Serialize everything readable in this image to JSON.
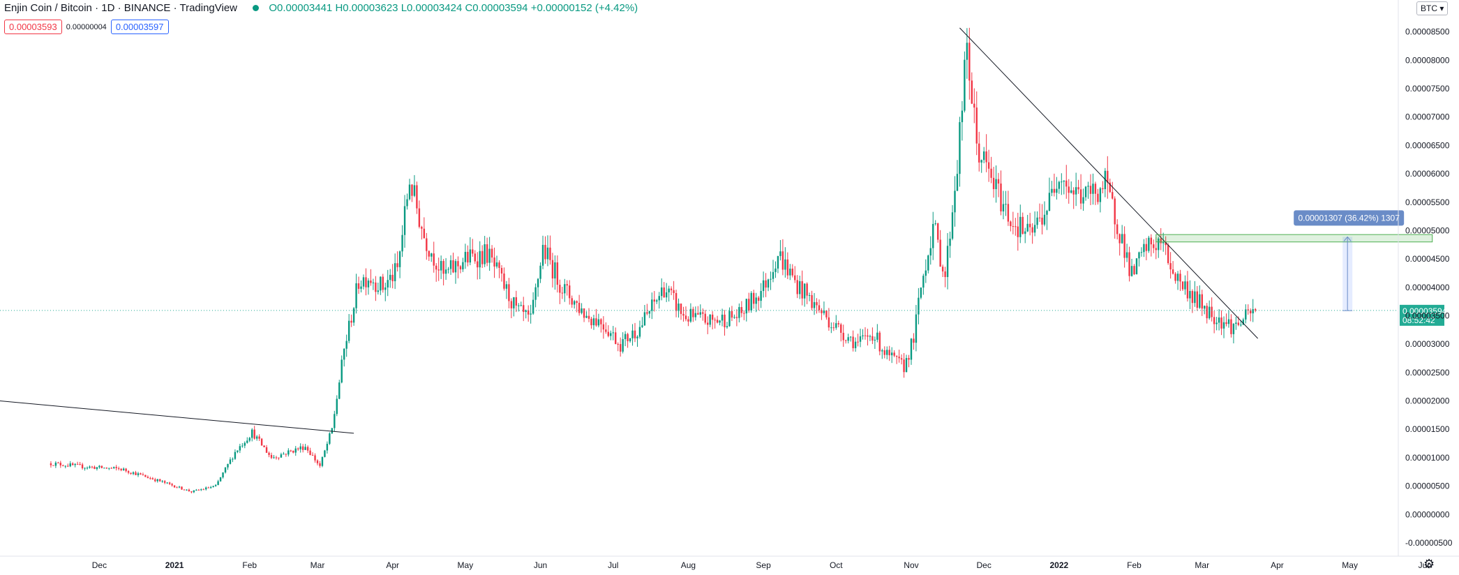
{
  "header": {
    "symbol": "Enjin Coin / Bitcoin · 1D · BINANCE · TradingView",
    "ohlc": "O0.00003441 H0.00003623 L0.00003424 C0.00003594 +0.00000152 (+4.42%)"
  },
  "quotes": {
    "bid": "0.00003593",
    "spread": "0.00000004",
    "ask": "0.00003597"
  },
  "currency_button": "BTC",
  "settings_icon": "gear-icon",
  "colors": {
    "up": "#089981",
    "down": "#f23645",
    "price_label": "#22ab94",
    "measure": "#6a8cc7"
  },
  "chart_data": {
    "type": "candlestick",
    "x_ticks": [
      "Dec",
      "2021",
      "Feb",
      "Mar",
      "Apr",
      "May",
      "Jun",
      "Jul",
      "Aug",
      "Sep",
      "Oct",
      "Nov",
      "Dec",
      "2022",
      "Feb",
      "Mar",
      "Apr",
      "May",
      "Jun"
    ],
    "y_ticks": [
      "0.00008500",
      "0.00008000",
      "0.00007500",
      "0.00007000",
      "0.00006500",
      "0.00006000",
      "0.00005500",
      "0.00005000",
      "0.00004500",
      "0.00004000",
      "0.00003500",
      "0.00003000",
      "0.00002500",
      "0.00002000",
      "0.00001500",
      "0.00001000",
      "0.00000500",
      "0.00000000",
      "-0.00000500"
    ],
    "ylim": [
      -5.5e-06,
      9e-05
    ],
    "last_price": {
      "value": "0.00003594",
      "countdown": "08:52:42"
    },
    "trendlines": [
      {
        "from": [
          "2020-10-21",
          2e-05
        ],
        "to": [
          "2021-03-16",
          1.43e-05
        ]
      },
      {
        "from": [
          "2021-11-21",
          8.57e-05
        ],
        "to": [
          "2022-03-24",
          3.1e-05
        ]
      }
    ],
    "measure": {
      "label": "0.00001307 (36.42%) 1307",
      "from": [
        "2022-04-30",
        3.59e-05
      ],
      "to": [
        "2022-04-30",
        4.89e-05
      ],
      "zone": {
        "from_date": "2022-02-10",
        "to_date": "2022-06-04",
        "low": 4.8e-05,
        "high": 4.93e-05
      }
    },
    "path_start": "2020-11-11",
    "path_end": "2022-03-23",
    "path": [
      [
        "2020-11-11",
        9e-06
      ],
      [
        "2020-11-25",
        8.4e-06
      ],
      [
        "2020-12-10",
        8e-06
      ],
      [
        "2020-12-25",
        6e-06
      ],
      [
        "2021-01-08",
        4e-06
      ],
      [
        "2021-01-18",
        5e-06
      ],
      [
        "2021-01-26",
        1.1e-05
      ],
      [
        "2021-02-02",
        1.45e-05
      ],
      [
        "2021-02-10",
        1e-05
      ],
      [
        "2021-02-17",
        1.1e-05
      ],
      [
        "2021-02-24",
        1.2e-05
      ],
      [
        "2021-03-02",
        8.5e-06
      ],
      [
        "2021-03-07",
        1.5e-05
      ],
      [
        "2021-03-12",
        2.9e-05
      ],
      [
        "2021-03-18",
        4.1e-05
      ],
      [
        "2021-03-22",
        4.2e-05
      ],
      [
        "2021-03-28",
        4e-05
      ],
      [
        "2021-04-03",
        4.3e-05
      ],
      [
        "2021-04-08",
        5.9e-05
      ],
      [
        "2021-04-14",
        4.9e-05
      ],
      [
        "2021-04-22",
        4.2e-05
      ],
      [
        "2021-05-01",
        4.5e-05
      ],
      [
        "2021-05-10",
        4.6e-05
      ],
      [
        "2021-05-16",
        4.1e-05
      ],
      [
        "2021-05-22",
        3.6e-05
      ],
      [
        "2021-05-28",
        3.4e-05
      ],
      [
        "2021-06-02",
        4.7e-05
      ],
      [
        "2021-06-10",
        4e-05
      ],
      [
        "2021-06-20",
        3.5e-05
      ],
      [
        "2021-06-26",
        3.4e-05
      ],
      [
        "2021-07-04",
        3e-05
      ],
      [
        "2021-07-12",
        3.3e-05
      ],
      [
        "2021-07-22",
        4e-05
      ],
      [
        "2021-07-30",
        3.5e-05
      ],
      [
        "2021-08-10",
        3.4e-05
      ],
      [
        "2021-08-22",
        3.5e-05
      ],
      [
        "2021-09-01",
        4e-05
      ],
      [
        "2021-09-07",
        4.6e-05
      ],
      [
        "2021-09-14",
        4.1e-05
      ],
      [
        "2021-09-22",
        3.7e-05
      ],
      [
        "2021-10-01",
        3.3e-05
      ],
      [
        "2021-10-10",
        3e-05
      ],
      [
        "2021-10-16",
        3.2e-05
      ],
      [
        "2021-10-22",
        2.8e-05
      ],
      [
        "2021-10-29",
        2.6e-05
      ],
      [
        "2021-11-02",
        3.1e-05
      ],
      [
        "2021-11-05",
        4e-05
      ],
      [
        "2021-11-10",
        5.1e-05
      ],
      [
        "2021-11-15",
        4.2e-05
      ],
      [
        "2021-11-20",
        6.2e-05
      ],
      [
        "2021-11-24",
        8.2e-05
      ],
      [
        "2021-11-28",
        6.5e-05
      ],
      [
        "2021-12-04",
        5.9e-05
      ],
      [
        "2021-12-12",
        5.2e-05
      ],
      [
        "2021-12-20",
        4.9e-05
      ],
      [
        "2021-12-28",
        5.5e-05
      ],
      [
        "2022-01-01",
        6.1e-05
      ],
      [
        "2022-01-06",
        5.7e-05
      ],
      [
        "2022-01-12",
        5.6e-05
      ],
      [
        "2022-01-20",
        5.8e-05
      ],
      [
        "2022-01-26",
        5e-05
      ],
      [
        "2022-01-31",
        4.2e-05
      ],
      [
        "2022-02-06",
        4.7e-05
      ],
      [
        "2022-02-12",
        4.8e-05
      ],
      [
        "2022-02-18",
        4.2e-05
      ],
      [
        "2022-02-26",
        3.8e-05
      ],
      [
        "2022-03-06",
        3.5e-05
      ],
      [
        "2022-03-14",
        3.3e-05
      ],
      [
        "2022-03-23",
        3.59e-05
      ]
    ]
  }
}
